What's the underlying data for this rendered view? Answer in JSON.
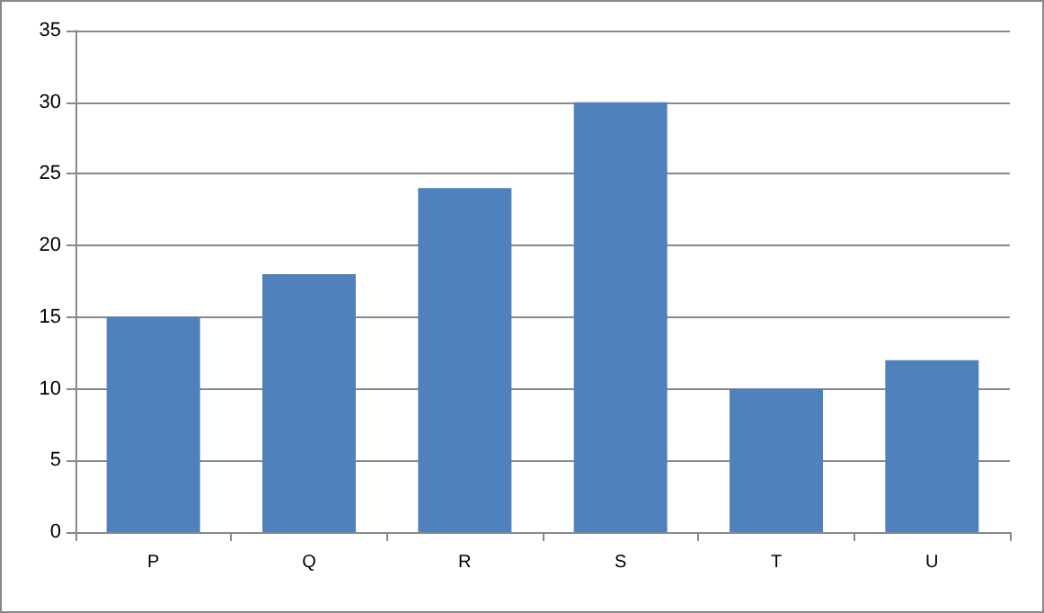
{
  "chart_data": {
    "type": "bar",
    "categories": [
      "P",
      "Q",
      "R",
      "S",
      "T",
      "U"
    ],
    "values": [
      15,
      18,
      24,
      30,
      10,
      12
    ],
    "color": "#4f81bd",
    "ylim": [
      0,
      35
    ],
    "yticks": [
      0,
      5,
      10,
      15,
      20,
      25,
      30,
      35
    ],
    "grid": "y"
  }
}
